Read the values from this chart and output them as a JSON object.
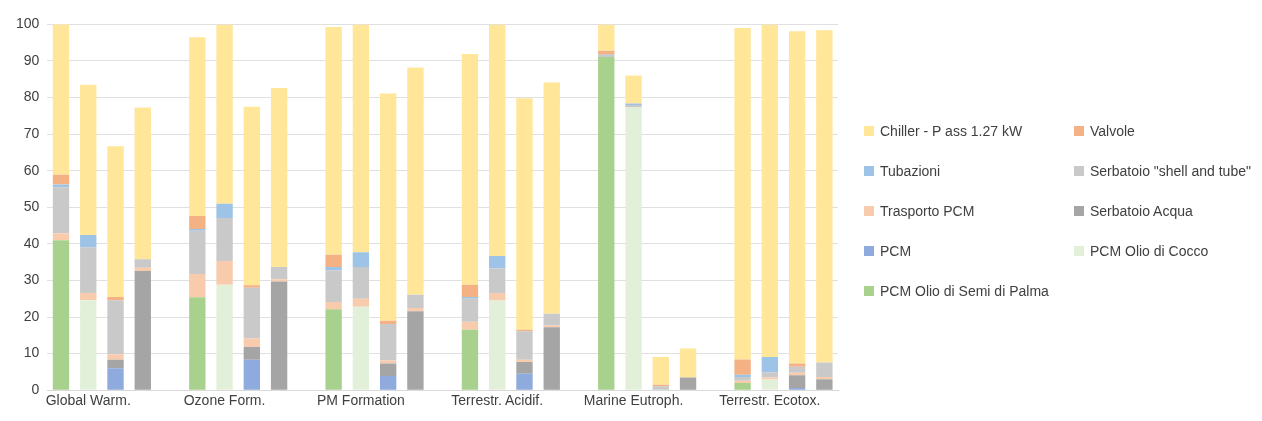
{
  "chart_data": {
    "type": "bar",
    "stacked": true,
    "grid": "y",
    "legend": "right",
    "ylim": [
      0,
      100
    ],
    "yticks": [
      0,
      10,
      20,
      30,
      40,
      50,
      60,
      70,
      80,
      90,
      100
    ],
    "categories": [
      null,
      "Global Warm.",
      null,
      null,
      null,
      null,
      "Ozone Form.",
      null,
      null,
      null,
      null,
      "PM Formation",
      null,
      null,
      null,
      null,
      "Terrestr. Acidif.",
      null,
      null,
      null,
      null,
      "Marine Eutroph.",
      null,
      null,
      null,
      null,
      "Terrestr. Ecotox.",
      null,
      null
    ],
    "series": [
      {
        "name": "PCM Olio di Semi di Palma",
        "color": "#a9d18e",
        "values": [
          41,
          null,
          null,
          null,
          null,
          25.4,
          null,
          null,
          null,
          null,
          22.1,
          null,
          null,
          null,
          null,
          16.5,
          null,
          null,
          null,
          null,
          91.1,
          null,
          null,
          null,
          null,
          2.0,
          null,
          null,
          null
        ]
      },
      {
        "name": "PCM Olio di Cocco",
        "color": "#e2f0d9",
        "values": [
          null,
          24.6,
          null,
          null,
          null,
          null,
          28.8,
          null,
          null,
          null,
          null,
          22.8,
          null,
          null,
          null,
          null,
          24.5,
          null,
          null,
          null,
          null,
          77.3,
          null,
          null,
          null,
          null,
          2.9,
          null,
          null
        ]
      },
      {
        "name": "PCM",
        "color": "#8faadc",
        "values": [
          null,
          null,
          6.0,
          null,
          null,
          null,
          null,
          8.3,
          null,
          null,
          null,
          null,
          3.9,
          null,
          null,
          null,
          null,
          4.5,
          null,
          null,
          null,
          null,
          null,
          null,
          null,
          null,
          null,
          0.6,
          null
        ]
      },
      {
        "name": "Serbatoio Acqua",
        "color": "#a5a5a5",
        "values": [
          null,
          null,
          2.3,
          32.6,
          null,
          null,
          null,
          3.5,
          29.7,
          null,
          null,
          null,
          3.4,
          21.6,
          null,
          null,
          null,
          3.2,
          17.2,
          null,
          null,
          null,
          null,
          3.5,
          null,
          null,
          null,
          3.5,
          3.0
        ]
      },
      {
        "name": "Trasporto PCM",
        "color": "#f8cbad",
        "values": [
          1.9,
          2.0,
          1.5,
          0.9,
          null,
          6.4,
          6.5,
          2.3,
          0.6,
          null,
          2.0,
          2.2,
          0.8,
          0.9,
          null,
          2.2,
          2.1,
          0.6,
          0.5,
          null,
          null,
          null,
          null,
          null,
          null,
          0.6,
          0.6,
          0.7,
          0.6
        ]
      },
      {
        "name": "Serbatoio \"shell and tube\"",
        "color": "#c9c9c9",
        "values": [
          12.6,
          12.5,
          14.8,
          2.3,
          null,
          11.8,
          11.8,
          13.9,
          3.4,
          null,
          8.7,
          8.7,
          10.0,
          3.6,
          null,
          6.3,
          6.7,
          7.8,
          3.2,
          null,
          0.8,
          0.7,
          1.1,
          null,
          null,
          1.0,
          1.4,
          1.6,
          4.0
        ]
      },
      {
        "name": "Tubazioni",
        "color": "#9dc3e6",
        "values": [
          0.7,
          3.3,
          null,
          null,
          null,
          0.5,
          3.9,
          null,
          null,
          null,
          0.9,
          4.0,
          null,
          null,
          null,
          0.5,
          3.4,
          null,
          null,
          null,
          null,
          0.4,
          null,
          null,
          null,
          0.6,
          4.2,
          null,
          null
        ]
      },
      {
        "name": "Valvole",
        "color": "#f4b183",
        "values": [
          2.7,
          null,
          0.9,
          null,
          null,
          3.5,
          null,
          0.7,
          null,
          null,
          3.3,
          null,
          0.9,
          null,
          null,
          3.3,
          null,
          0.4,
          null,
          null,
          0.9,
          null,
          0.4,
          null,
          null,
          4.2,
          null,
          0.9,
          null
        ]
      },
      {
        "name": "Chiller - P ass 1.27 kW",
        "color": "#ffe699",
        "values": [
          41.2,
          41.1,
          41.2,
          41.5,
          null,
          48.9,
          49.0,
          48.8,
          48.9,
          null,
          62.3,
          62.3,
          62.1,
          62.1,
          null,
          63.1,
          63.3,
          63.3,
          63.2,
          null,
          7.2,
          7.6,
          7.6,
          7.9,
          null,
          90.6,
          90.9,
          90.8,
          90.8
        ]
      }
    ]
  }
}
